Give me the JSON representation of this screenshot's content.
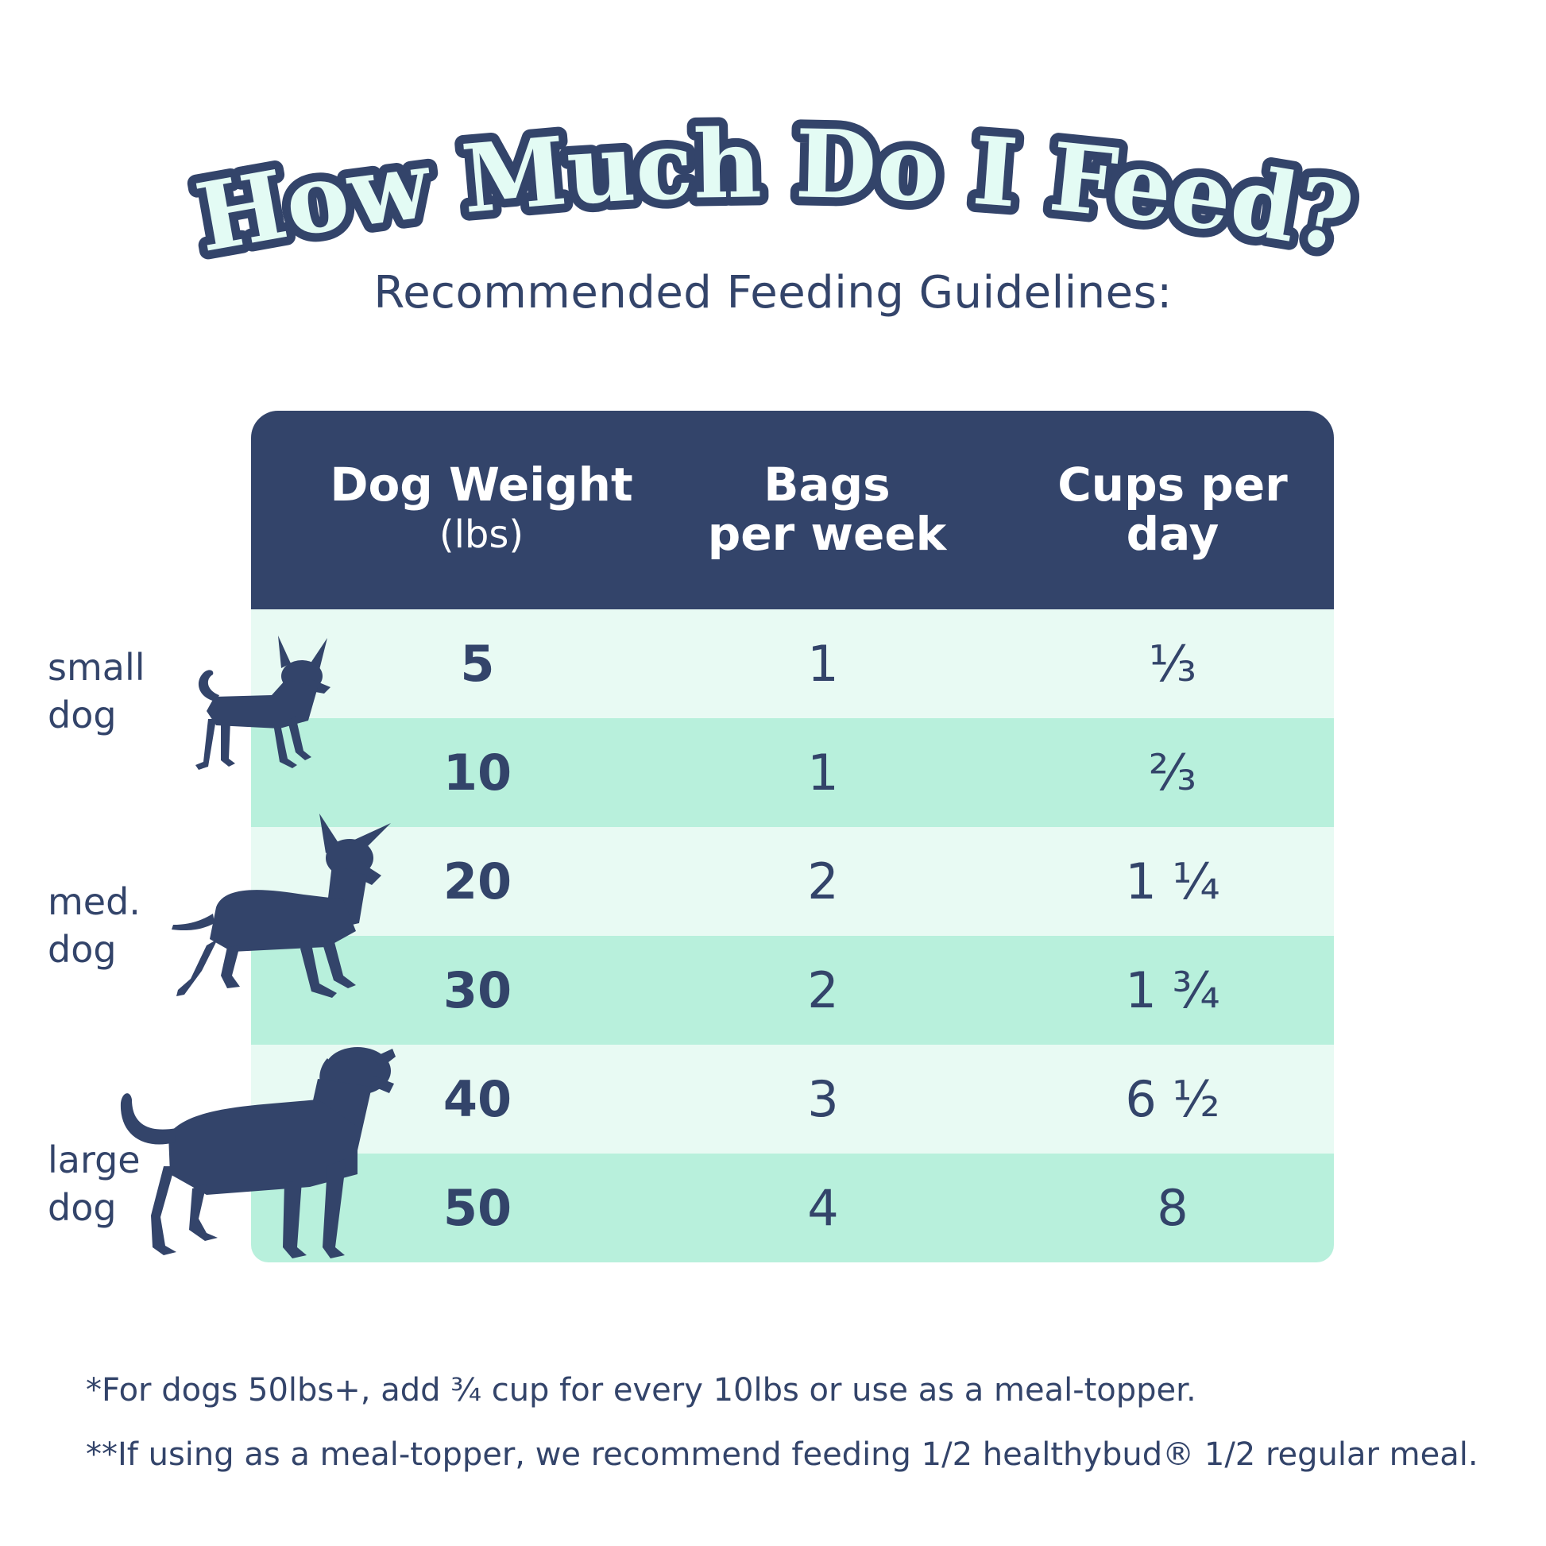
{
  "title": "How Much Do I Feed?",
  "subtitle": "Recommended Feeding Guidelines:",
  "colors": {
    "navy": "#33446a",
    "title_fill": "#e3fbf4",
    "row_light": "#e8faf3",
    "row_dark": "#b8f0dc"
  },
  "table": {
    "headers": {
      "weight": "Dog Weight",
      "weight_unit": "(lbs)",
      "bags_line1": "Bags",
      "bags_line2": "per week",
      "cups_line1": "Cups per",
      "cups_line2": "day"
    },
    "rows": [
      {
        "weight": "5",
        "bags": "1",
        "cups": "⅓"
      },
      {
        "weight": "10",
        "bags": "1",
        "cups": "⅔"
      },
      {
        "weight": "20",
        "bags": "2",
        "cups": "1 ¼"
      },
      {
        "weight": "30",
        "bags": "2",
        "cups": "1 ¾"
      },
      {
        "weight": "40",
        "bags": "3",
        "cups": "6 ½"
      },
      {
        "weight": "50",
        "bags": "4",
        "cups": "8"
      }
    ]
  },
  "dog_groups": [
    {
      "line1": "small",
      "line2": "dog",
      "icon": "small-dog-silhouette-icon"
    },
    {
      "line1": "med.",
      "line2": "dog",
      "icon": "medium-dog-silhouette-icon"
    },
    {
      "line1": "large",
      "line2": "dog",
      "icon": "large-dog-silhouette-icon"
    }
  ],
  "footnotes": [
    "*For dogs 50lbs+, add ¾ cup for every 10lbs or use as a meal-topper.",
    "**If using as a meal-topper, we recommend feeding 1/2 healthybud® 1/2 regular meal."
  ]
}
